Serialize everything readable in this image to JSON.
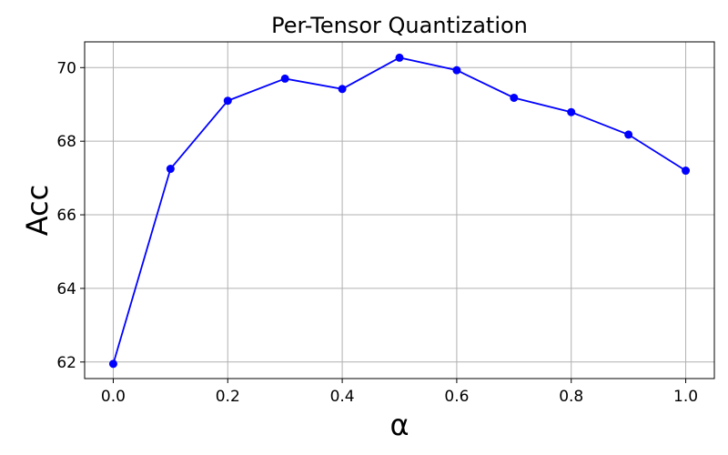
{
  "chart_data": {
    "type": "line",
    "title": "Per-Tensor Quantization",
    "xlabel": "α",
    "ylabel": "Acc",
    "xlim": [
      -0.05,
      1.05
    ],
    "ylim": [
      61.55,
      70.7
    ],
    "xticks": [
      0.0,
      0.2,
      0.4,
      0.6,
      0.8,
      1.0
    ],
    "xtick_labels": [
      "0.0",
      "0.2",
      "0.4",
      "0.6",
      "0.8",
      "1.0"
    ],
    "yticks": [
      62,
      64,
      66,
      68,
      70
    ],
    "ytick_labels": [
      "62",
      "64",
      "66",
      "68",
      "70"
    ],
    "grid": true,
    "series": [
      {
        "color": "#0000ff",
        "marker": "circle",
        "x": [
          0.0,
          0.1,
          0.2,
          0.3,
          0.4,
          0.5,
          0.6,
          0.7,
          0.8,
          0.9,
          1.0
        ],
        "y": [
          61.95,
          67.25,
          69.1,
          69.7,
          69.42,
          70.27,
          69.93,
          69.18,
          68.79,
          68.18,
          67.2
        ]
      }
    ]
  }
}
